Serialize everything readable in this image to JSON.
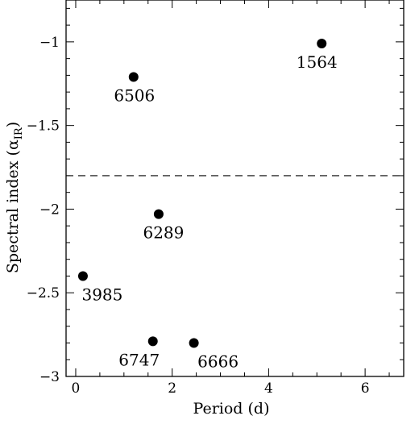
{
  "chart_data": {
    "type": "scatter",
    "title": "",
    "xlabel": "Period (d)",
    "ylabel_main": "Spectral index (α",
    "ylabel_sub": "IR",
    "ylabel_close": ")",
    "xlim": [
      -0.2,
      6.8
    ],
    "ylim": [
      -3.0,
      -0.75
    ],
    "x_ticks": [
      0,
      2,
      4,
      6
    ],
    "x_tick_labels": [
      "0",
      "2",
      "4",
      "6"
    ],
    "y_ticks": [
      -1,
      -1.5,
      -2,
      -2.5,
      -3
    ],
    "y_tick_labels": [
      "−1",
      "−1.5",
      "−2",
      "−2.5",
      "−3"
    ],
    "reference_line": {
      "y": -1.8,
      "style": "dashed"
    },
    "grid": false,
    "points": [
      {
        "label": "1564",
        "x": 5.1,
        "y": -1.01
      },
      {
        "label": "6506",
        "x": 1.2,
        "y": -1.21
      },
      {
        "label": "6289",
        "x": 1.72,
        "y": -2.03
      },
      {
        "label": "3985",
        "x": 0.15,
        "y": -2.4
      },
      {
        "label": "6747",
        "x": 1.6,
        "y": -2.79
      },
      {
        "label": "6666",
        "x": 2.45,
        "y": -2.8
      }
    ]
  }
}
